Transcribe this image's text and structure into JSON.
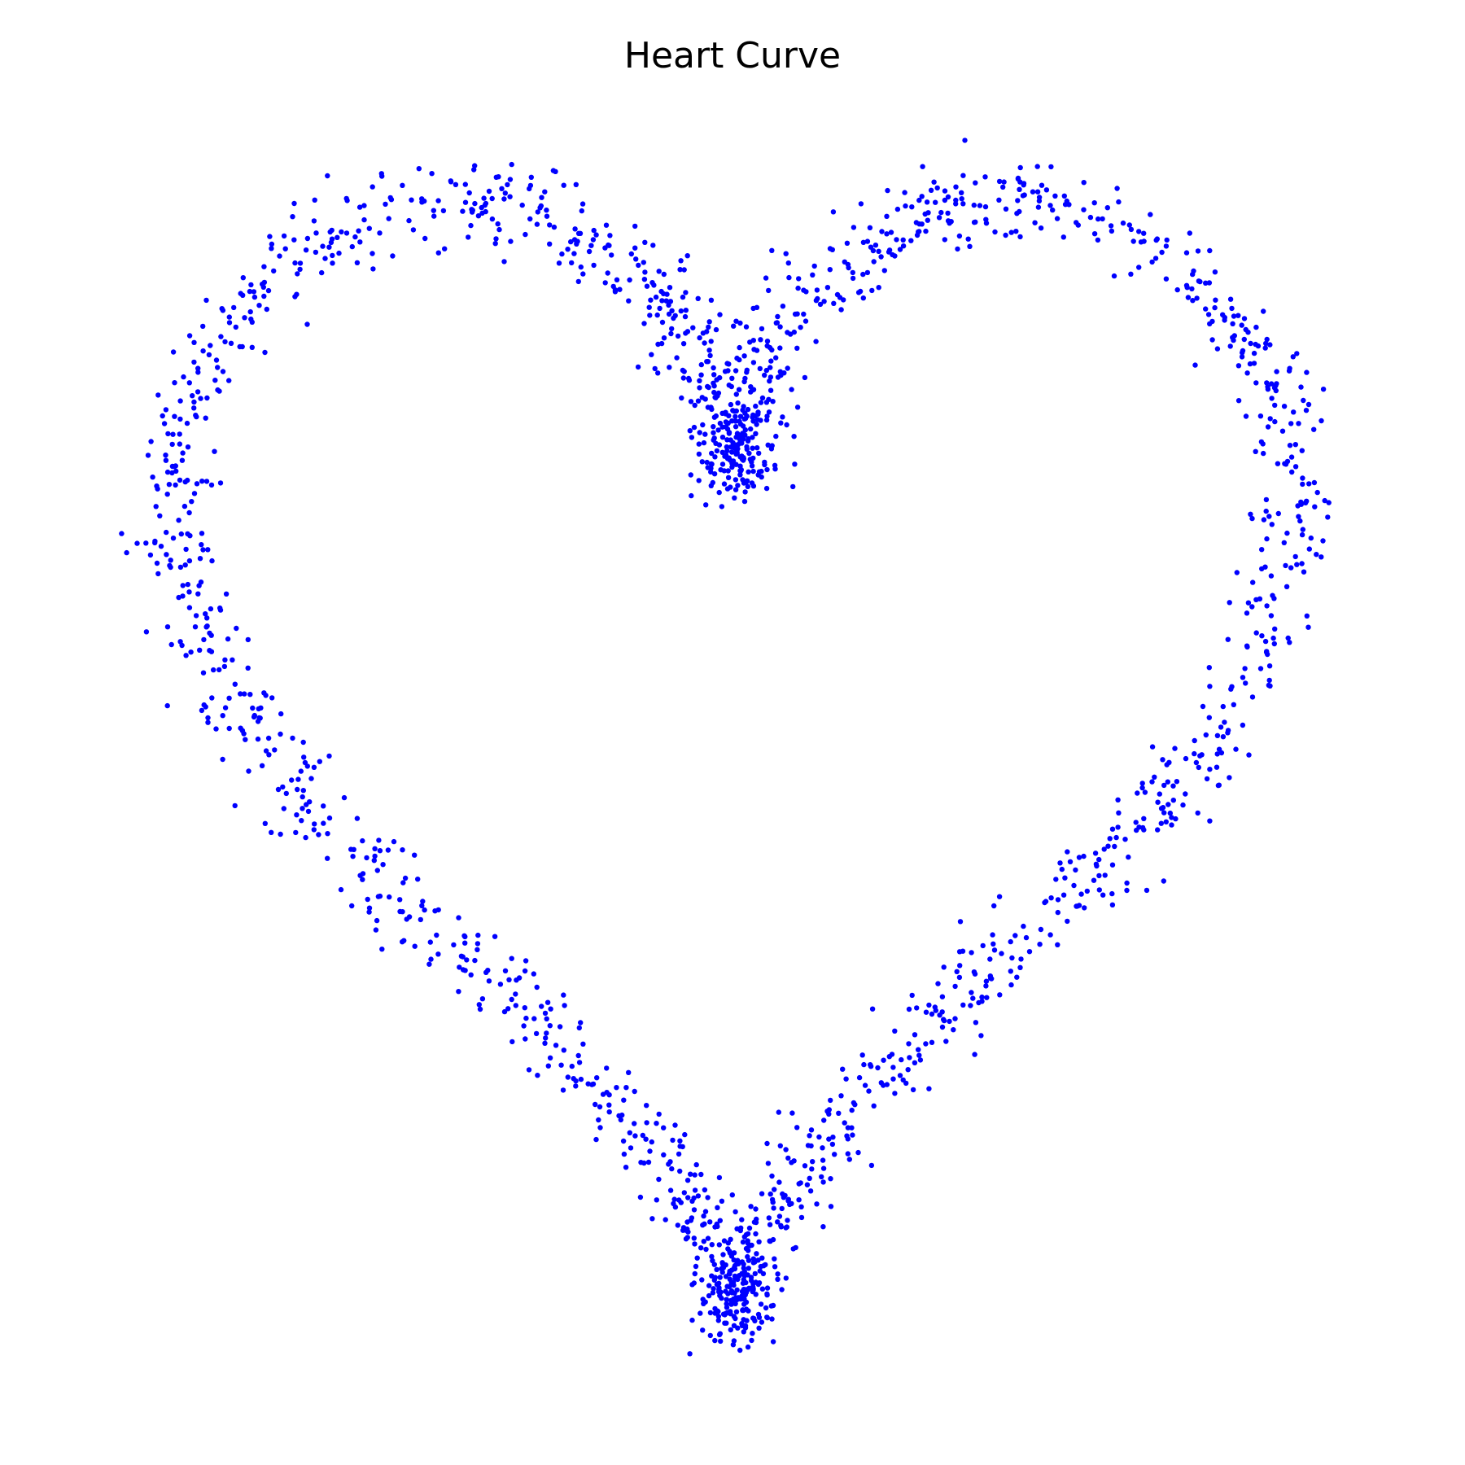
{
  "chart_data": {
    "type": "scatter",
    "title": "Heart Curve",
    "xlabel": "",
    "ylabel": "",
    "axes_visible": false,
    "grid": false,
    "xlim": [
      -18.5,
      18.5
    ],
    "ylim": [
      -19,
      14
    ],
    "marker_color": "#0000ff",
    "series": [
      {
        "x": [
          0.28,
          2.02,
          3.99,
          6.09,
          8.08,
          9.87,
          11.41,
          12.65,
          13.6,
          14.3,
          14.83,
          15.27,
          15.69,
          16.13,
          16.53,
          16.82,
          16.88,
          16.59,
          15.85,
          14.61,
          12.87,
          10.7,
          8.21,
          5.58,
          3.02,
          0.71,
          -1.14,
          -2.29,
          -2.57,
          -1.61,
          0.28,
          -2.02,
          -3.99,
          -6.09,
          -8.08,
          -9.87,
          -11.41,
          -12.65,
          -13.6,
          -14.3,
          -14.83,
          -15.27,
          -15.69,
          -16.13,
          -16.53,
          -16.82,
          -16.88,
          -16.59,
          -15.85,
          -14.61,
          -12.87,
          -10.7,
          -8.21,
          -5.58,
          -3.02,
          -0.71,
          1.14,
          2.29,
          2.57,
          1.61,
          0.0
        ],
        "y": [
          -16.98,
          -16.18,
          -14.67,
          -12.75,
          -10.71,
          -8.74,
          -6.92,
          -5.2,
          -3.45,
          -1.5,
          0.73,
          3.18,
          5.7,
          8.05,
          10.0,
          11.33,
          11.89,
          11.62,
          10.55,
          8.81,
          6.63,
          4.24,
          1.93,
          -0.01,
          -1.35,
          -1.93,
          -1.72,
          -0.86,
          0.28,
          1.2,
          5.0,
          1.2,
          0.28,
          -0.86,
          -1.72,
          -1.93,
          -1.35,
          -0.01,
          1.93,
          4.24,
          6.63,
          8.81,
          10.55,
          11.62,
          11.89,
          11.33,
          10.0,
          8.05,
          5.7,
          3.18,
          0.73,
          -1.5,
          -3.45,
          -5.2,
          -6.92,
          -8.74,
          -10.71,
          -12.75,
          -14.67,
          -16.18,
          -17.0
        ],
        "note": ""
      }
    ]
  }
}
